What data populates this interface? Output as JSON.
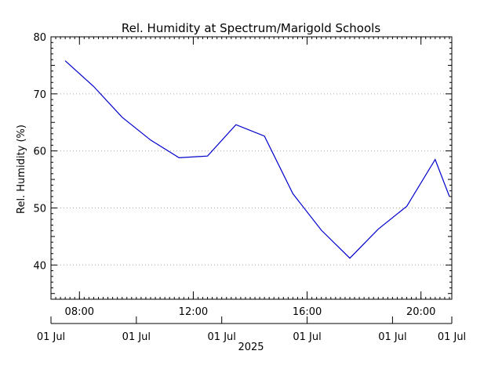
{
  "chart_data": {
    "type": "line",
    "title": "Rel. Humidity at Spectrum/Marigold Schools",
    "ylabel": "Rel. Humidity (%)",
    "xlabel": "2025",
    "ylim": [
      34,
      80
    ],
    "y_ticks": [
      "40",
      "50",
      "60",
      "70",
      "80"
    ],
    "x_range_hours": [
      "07:00",
      "21:05"
    ],
    "x_ticks_top": [
      {
        "label": "08:00",
        "hour": 8
      },
      {
        "label": "12:00",
        "hour": 12
      },
      {
        "label": "16:00",
        "hour": 16
      },
      {
        "label": "20:00",
        "hour": 20
      }
    ],
    "x_ticks_bottom": [
      {
        "label": "01 Jul",
        "hour": 7
      },
      {
        "label": "01 Jul",
        "hour": 10
      },
      {
        "label": "01 Jul",
        "hour": 13
      },
      {
        "label": "01 Jul",
        "hour": 16
      },
      {
        "label": "01 Jul",
        "hour": 19
      },
      {
        "label": "01 Jul",
        "hour": 22
      }
    ],
    "grid": true,
    "series": [
      {
        "color": "#0000cc",
        "x": [
          "07:30",
          "08:30",
          "09:30",
          "10:30",
          "11:30",
          "12:30",
          "13:30",
          "14:30",
          "15:30",
          "16:30",
          "17:30",
          "18:30",
          "19:30",
          "20:30",
          "21:00"
        ],
        "y": [
          75.8,
          71.3,
          65.9,
          61.9,
          58.8,
          59.1,
          64.6,
          62.6,
          52.5,
          46.1,
          41.2,
          46.3,
          50.3,
          58.5,
          52.0
        ]
      }
    ]
  }
}
